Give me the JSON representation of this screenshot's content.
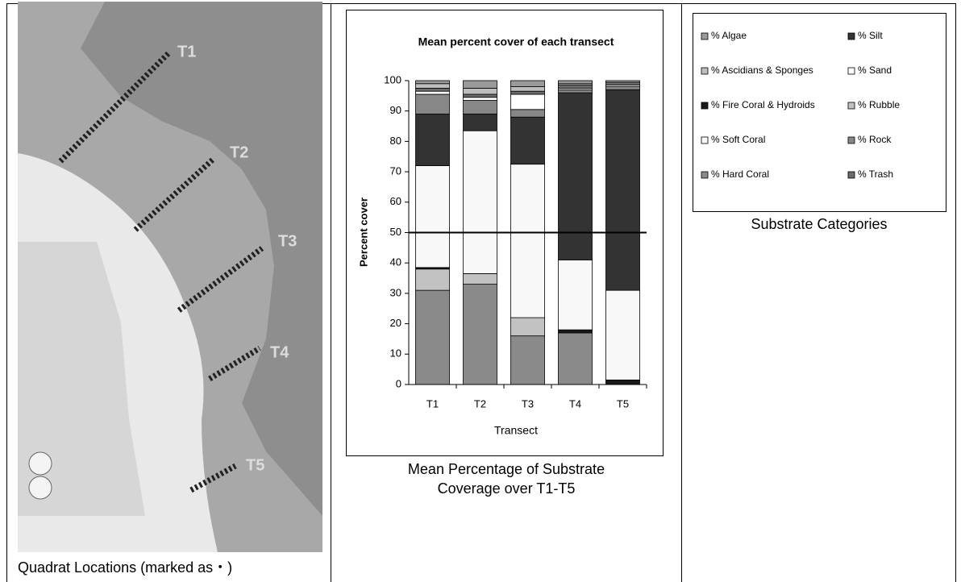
{
  "map": {
    "labels": [
      "T1",
      "T2",
      "T3",
      "T4",
      "T5"
    ],
    "caption": "Quadrat Locations (marked as・)"
  },
  "chart_data": {
    "type": "stacked-bar",
    "title": "Mean percent cover of each transect",
    "x_label": "Transect",
    "y_label": "Percent cover",
    "categories": [
      "T1",
      "T2",
      "T3",
      "T4",
      "T5"
    ],
    "ylim": [
      0,
      100
    ],
    "yticks": [
      0,
      10,
      20,
      30,
      40,
      50,
      60,
      70,
      80,
      90,
      100
    ],
    "series": [
      {
        "name": "% Algae",
        "color": "#9a9a9a",
        "values": [
          1,
          2.5,
          2,
          1,
          0
        ]
      },
      {
        "name": "% Ascidians & Sponges",
        "color": "#bdbdbd",
        "values": [
          1.5,
          2,
          1.5,
          0.5,
          0.5
        ]
      },
      {
        "name": "% Fire Coral & Hydroids",
        "color": "#1a1a1a",
        "values": [
          0.5,
          0,
          0,
          1,
          1.5
        ]
      },
      {
        "name": "% Soft Coral",
        "color": "#f8f8f8",
        "values": [
          33.5,
          47,
          50.5,
          23,
          29.5
        ]
      },
      {
        "name": "% Hard Coral",
        "color": "#8a8a8a",
        "values": [
          31,
          33,
          16,
          17,
          0
        ]
      },
      {
        "name": "% Silt",
        "color": "#333333",
        "values": [
          17,
          5.5,
          15.5,
          55,
          66
        ]
      },
      {
        "name": "% Sand",
        "color": "#ffffff",
        "values": [
          1,
          1,
          5,
          0.5,
          0.5
        ]
      },
      {
        "name": "% Rubble",
        "color": "#c2c2c2",
        "values": [
          7,
          3.5,
          6,
          0,
          0
        ]
      },
      {
        "name": "% Rock",
        "color": "#878787",
        "values": [
          6.5,
          4.5,
          2.5,
          1,
          1
        ]
      },
      {
        "name": "% Trash",
        "color": "#6b6b6b",
        "values": [
          1,
          1,
          1,
          1,
          1
        ]
      }
    ],
    "caption": [
      "Mean Percentage of Substrate",
      "Coverage over T1-T5"
    ],
    "legend_caption": "Substrate Categories"
  }
}
